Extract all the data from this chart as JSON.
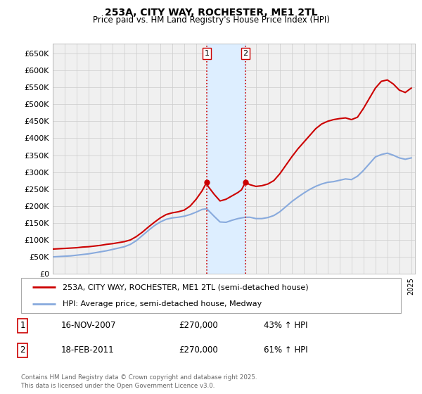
{
  "title": "253A, CITY WAY, ROCHESTER, ME1 2TL",
  "subtitle": "Price paid vs. HM Land Registry's House Price Index (HPI)",
  "ylim": [
    0,
    680000
  ],
  "yticks": [
    0,
    50000,
    100000,
    150000,
    200000,
    250000,
    300000,
    350000,
    400000,
    450000,
    500000,
    550000,
    600000,
    650000
  ],
  "ytick_labels": [
    "£0",
    "£50K",
    "£100K",
    "£150K",
    "£200K",
    "£250K",
    "£300K",
    "£350K",
    "£400K",
    "£450K",
    "£500K",
    "£550K",
    "£600K",
    "£650K"
  ],
  "background_color": "#ffffff",
  "grid_color": "#cccccc",
  "transaction_color": "#cc0000",
  "hpi_color": "#88aadd",
  "shade_color": "#ddeeff",
  "purchase1_date": 2007.88,
  "purchase2_date": 2011.12,
  "legend_line1": "253A, CITY WAY, ROCHESTER, ME1 2TL (semi-detached house)",
  "legend_line2": "HPI: Average price, semi-detached house, Medway",
  "annotation1_date": "16-NOV-2007",
  "annotation1_price": "£270,000",
  "annotation1_pct": "43% ↑ HPI",
  "annotation2_date": "18-FEB-2011",
  "annotation2_price": "£270,000",
  "annotation2_pct": "61% ↑ HPI",
  "copyright_text": "Contains HM Land Registry data © Crown copyright and database right 2025.\nThis data is licensed under the Open Government Licence v3.0.",
  "transaction_data": [
    [
      1995.0,
      73000
    ],
    [
      1995.5,
      74000
    ],
    [
      1996.0,
      75000
    ],
    [
      1996.5,
      76000
    ],
    [
      1997.0,
      77000
    ],
    [
      1997.5,
      79000
    ],
    [
      1998.0,
      80000
    ],
    [
      1998.5,
      82000
    ],
    [
      1999.0,
      84000
    ],
    [
      1999.5,
      87000
    ],
    [
      2000.0,
      89000
    ],
    [
      2000.5,
      92000
    ],
    [
      2001.0,
      95000
    ],
    [
      2001.5,
      100000
    ],
    [
      2002.0,
      110000
    ],
    [
      2002.5,
      123000
    ],
    [
      2003.0,
      138000
    ],
    [
      2003.5,
      152000
    ],
    [
      2004.0,
      165000
    ],
    [
      2004.5,
      175000
    ],
    [
      2005.0,
      180000
    ],
    [
      2005.5,
      183000
    ],
    [
      2006.0,
      188000
    ],
    [
      2006.5,
      200000
    ],
    [
      2007.0,
      220000
    ],
    [
      2007.5,
      245000
    ],
    [
      2007.88,
      270000
    ],
    [
      2008.0,
      258000
    ],
    [
      2008.5,
      235000
    ],
    [
      2009.0,
      215000
    ],
    [
      2009.5,
      220000
    ],
    [
      2010.0,
      230000
    ],
    [
      2010.5,
      240000
    ],
    [
      2010.8,
      248000
    ],
    [
      2011.12,
      270000
    ],
    [
      2011.5,
      263000
    ],
    [
      2012.0,
      258000
    ],
    [
      2012.5,
      260000
    ],
    [
      2013.0,
      265000
    ],
    [
      2013.5,
      275000
    ],
    [
      2014.0,
      295000
    ],
    [
      2014.5,
      320000
    ],
    [
      2015.0,
      345000
    ],
    [
      2015.5,
      368000
    ],
    [
      2016.0,
      388000
    ],
    [
      2016.5,
      408000
    ],
    [
      2017.0,
      428000
    ],
    [
      2017.5,
      442000
    ],
    [
      2018.0,
      450000
    ],
    [
      2018.5,
      455000
    ],
    [
      2019.0,
      458000
    ],
    [
      2019.5,
      460000
    ],
    [
      2020.0,
      455000
    ],
    [
      2020.5,
      462000
    ],
    [
      2021.0,
      488000
    ],
    [
      2021.5,
      518000
    ],
    [
      2022.0,
      548000
    ],
    [
      2022.5,
      568000
    ],
    [
      2023.0,
      572000
    ],
    [
      2023.5,
      560000
    ],
    [
      2024.0,
      542000
    ],
    [
      2024.5,
      535000
    ],
    [
      2025.0,
      548000
    ]
  ],
  "hpi_data": [
    [
      1995.0,
      50000
    ],
    [
      1995.5,
      51000
    ],
    [
      1996.0,
      52000
    ],
    [
      1996.5,
      53000
    ],
    [
      1997.0,
      55000
    ],
    [
      1997.5,
      57000
    ],
    [
      1998.0,
      59000
    ],
    [
      1998.5,
      62000
    ],
    [
      1999.0,
      65000
    ],
    [
      1999.5,
      68000
    ],
    [
      2000.0,
      72000
    ],
    [
      2000.5,
      76000
    ],
    [
      2001.0,
      80000
    ],
    [
      2001.5,
      87000
    ],
    [
      2002.0,
      98000
    ],
    [
      2002.5,
      113000
    ],
    [
      2003.0,
      128000
    ],
    [
      2003.5,
      142000
    ],
    [
      2004.0,
      153000
    ],
    [
      2004.5,
      161000
    ],
    [
      2005.0,
      165000
    ],
    [
      2005.5,
      167000
    ],
    [
      2006.0,
      170000
    ],
    [
      2006.5,
      175000
    ],
    [
      2007.0,
      182000
    ],
    [
      2007.5,
      190000
    ],
    [
      2007.88,
      192000
    ],
    [
      2008.0,
      188000
    ],
    [
      2008.5,
      170000
    ],
    [
      2009.0,
      153000
    ],
    [
      2009.5,
      152000
    ],
    [
      2010.0,
      158000
    ],
    [
      2010.5,
      163000
    ],
    [
      2010.8,
      165000
    ],
    [
      2011.12,
      167000
    ],
    [
      2011.5,
      167000
    ],
    [
      2012.0,
      163000
    ],
    [
      2012.5,
      163000
    ],
    [
      2013.0,
      166000
    ],
    [
      2013.5,
      172000
    ],
    [
      2014.0,
      183000
    ],
    [
      2014.5,
      198000
    ],
    [
      2015.0,
      213000
    ],
    [
      2015.5,
      226000
    ],
    [
      2016.0,
      238000
    ],
    [
      2016.5,
      249000
    ],
    [
      2017.0,
      258000
    ],
    [
      2017.5,
      265000
    ],
    [
      2018.0,
      270000
    ],
    [
      2018.5,
      272000
    ],
    [
      2019.0,
      276000
    ],
    [
      2019.5,
      280000
    ],
    [
      2020.0,
      278000
    ],
    [
      2020.5,
      288000
    ],
    [
      2021.0,
      305000
    ],
    [
      2021.5,
      325000
    ],
    [
      2022.0,
      345000
    ],
    [
      2022.5,
      352000
    ],
    [
      2023.0,
      356000
    ],
    [
      2023.5,
      350000
    ],
    [
      2024.0,
      342000
    ],
    [
      2024.5,
      338000
    ],
    [
      2025.0,
      342000
    ]
  ]
}
